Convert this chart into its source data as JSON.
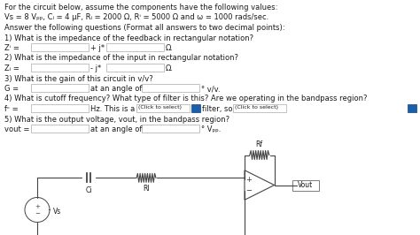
{
  "line1": "For the circuit below, assume the components have the following values:",
  "line2": "Vs = 8 Vₚₚ, Cᵢ = 4 μF, Rᵢ = 2000 Ω, Rⁱ = 5000 Ω and ω = 1000 rads/sec.",
  "line3": "Answer the following questions (Format all answers to two decimal points):",
  "q1": "1) What is the impedance of the feedback in rectangular notation?",
  "q1a_label": "Zⁱ =",
  "q1a_mid": "+ j*",
  "q1a_end": "Ω.",
  "q2": "2) What is the impedance of the input in rectangular notation?",
  "q2a_label": "Zᵢ =",
  "q2a_mid": "- j*",
  "q2a_end": "Ω.",
  "q3": "3) What is the gain of this circuit in v/v?",
  "q3a_label": "G =",
  "q3a_mid": "at an angle of",
  "q3a_end": "° v/v.",
  "q4": "4) What is cutoff frequency? What type of filter is this? Are we operating in the bandpass region?",
  "q4a_label": "fᶜ =",
  "q4a_mid": "Hz. This is a",
  "q4a_sel1": "(Click to select)",
  "q4a_blue": "",
  "q4a_filter": "filter, so",
  "q4a_sel2": "(Click to select)",
  "q5": "5) What is the output voltage, vout, in the bandpass region?",
  "q5a_label": "vout =",
  "q5a_mid": "at an angle of",
  "q5a_end": "° Vₚₚ.",
  "bg_color": "#ffffff",
  "text_color": "#1a1a1a",
  "box_edge": "#aaaaaa",
  "blue_box_color": "#1a5fa8",
  "fs": 6.0
}
